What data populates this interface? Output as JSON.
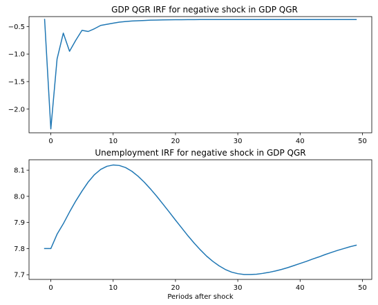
{
  "chart_data": [
    {
      "type": "line",
      "title": "GDP QGR IRF for negative shock in GDP QGR",
      "xlabel": "",
      "ylabel": "",
      "xlim": [
        -3.5,
        51.5
      ],
      "ylim": [
        -2.43,
        -0.32
      ],
      "xticks": [
        0,
        10,
        20,
        30,
        40,
        50
      ],
      "yticks": [
        -2.0,
        -1.5,
        -1.0,
        -0.5
      ],
      "ytick_labels": [
        "−2.0",
        "−1.5",
        "−1.0",
        "−0.5"
      ],
      "grid": false,
      "color": "#1f77b4",
      "series": [
        {
          "x": [
            -1,
            0,
            1,
            2,
            3,
            4,
            5,
            6,
            7,
            8,
            9,
            10,
            11,
            12,
            13,
            14,
            15,
            16,
            17,
            18,
            19,
            20,
            21,
            22,
            23,
            24,
            25,
            26,
            27,
            28,
            29,
            30,
            31,
            32,
            33,
            34,
            35,
            36,
            37,
            38,
            39,
            40,
            41,
            42,
            43,
            44,
            45,
            46,
            47,
            48,
            49
          ],
          "values": [
            -0.37,
            -2.36,
            -1.09,
            -0.62,
            -0.95,
            -0.75,
            -0.57,
            -0.59,
            -0.54,
            -0.48,
            -0.46,
            -0.44,
            -0.42,
            -0.41,
            -0.4,
            -0.395,
            -0.39,
            -0.385,
            -0.382,
            -0.38,
            -0.378,
            -0.377,
            -0.376,
            -0.375,
            -0.375,
            -0.374,
            -0.374,
            -0.374,
            -0.373,
            -0.373,
            -0.373,
            -0.373,
            -0.373,
            -0.373,
            -0.373,
            -0.373,
            -0.373,
            -0.373,
            -0.373,
            -0.373,
            -0.373,
            -0.373,
            -0.373,
            -0.373,
            -0.373,
            -0.373,
            -0.373,
            -0.373,
            -0.373,
            -0.373,
            -0.373
          ]
        }
      ]
    },
    {
      "type": "line",
      "title": "Unemployment IRF for negative shock in GDP QGR",
      "xlabel": "Periods after shock",
      "ylabel": "",
      "xlim": [
        -3.5,
        51.5
      ],
      "ylim": [
        7.682,
        8.14
      ],
      "xticks": [
        0,
        10,
        20,
        30,
        40,
        50
      ],
      "yticks": [
        7.7,
        7.8,
        7.9,
        8.0,
        8.1
      ],
      "ytick_labels": [
        "7.7",
        "7.8",
        "7.9",
        "8.0",
        "8.1"
      ],
      "grid": false,
      "color": "#1f77b4",
      "series": [
        {
          "x": [
            -1,
            0,
            1,
            2,
            3,
            4,
            5,
            6,
            7,
            8,
            9,
            10,
            11,
            12,
            13,
            14,
            15,
            16,
            17,
            18,
            19,
            20,
            21,
            22,
            23,
            24,
            25,
            26,
            27,
            28,
            29,
            30,
            31,
            32,
            33,
            34,
            35,
            36,
            37,
            38,
            39,
            40,
            41,
            42,
            43,
            44,
            45,
            46,
            47,
            48,
            49
          ],
          "values": [
            7.8,
            7.8,
            7.855,
            7.895,
            7.94,
            7.982,
            8.02,
            8.055,
            8.083,
            8.103,
            8.115,
            8.12,
            8.118,
            8.11,
            8.096,
            8.077,
            8.054,
            8.028,
            8.0,
            7.97,
            7.94,
            7.909,
            7.879,
            7.849,
            7.821,
            7.795,
            7.771,
            7.751,
            7.734,
            7.72,
            7.71,
            7.704,
            7.701,
            7.701,
            7.702,
            7.705,
            7.709,
            7.714,
            7.72,
            7.727,
            7.735,
            7.743,
            7.751,
            7.76,
            7.768,
            7.777,
            7.785,
            7.793,
            7.8,
            7.807,
            7.813
          ]
        }
      ]
    }
  ]
}
